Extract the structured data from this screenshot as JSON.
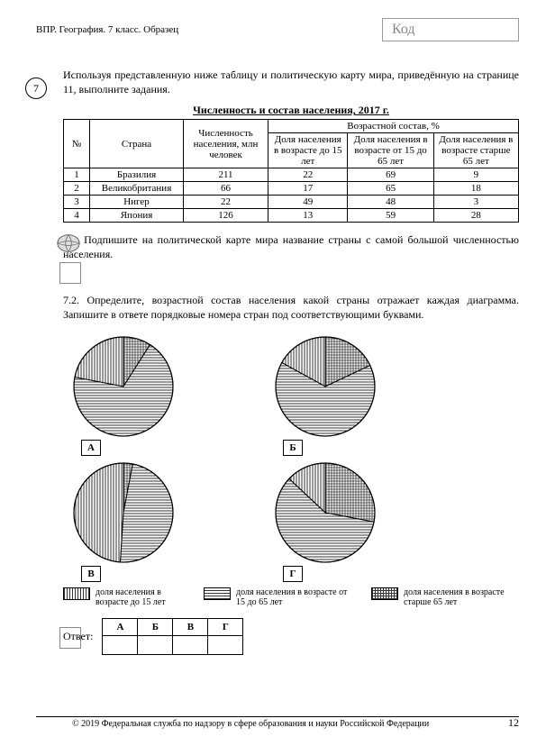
{
  "header": {
    "left": "ВПР. География. 7 класс. Образец",
    "code_label": "Код"
  },
  "task": {
    "number": "7",
    "intro": "Используя представленную ниже таблицу и политическую карту мира, приведённую на странице 11, выполните задания.",
    "table_title": "Численность и состав населения, 2017 г.",
    "columns": {
      "num": "№",
      "country": "Страна",
      "pop": "Численность населения, млн человек",
      "age_header": "Возрастной состав, %",
      "u15": "Доля населения в возрасте до 15 лет",
      "mid": "Доля населения в возрасте от 15 до 65 лет",
      "o65": "Доля населения в возрасте старше 65 лет"
    },
    "rows": [
      {
        "n": "1",
        "country": "Бразилия",
        "pop": "211",
        "u15": "22",
        "mid": "69",
        "o65": "9"
      },
      {
        "n": "2",
        "country": "Великобритания",
        "pop": "66",
        "u15": "17",
        "mid": "65",
        "o65": "18"
      },
      {
        "n": "3",
        "country": "Нигер",
        "pop": "22",
        "u15": "49",
        "mid": "48",
        "o65": "3"
      },
      {
        "n": "4",
        "country": "Япония",
        "pop": "126",
        "u15": "13",
        "mid": "59",
        "o65": "28"
      }
    ],
    "sub71": "7.1. Подпишите на политической карте мира название страны с самой большой численностью населения.",
    "sub72": "7.2. Определите, возрастной состав населения какой страны отражает каждая диаграмма. Запишите в ответе порядковые номера стран под соответствующими буквами."
  },
  "charts": {
    "radius": 55,
    "stroke": "#000000",
    "patterns": {
      "u15": {
        "id": "pVert",
        "desc": "vertical-lines"
      },
      "mid": {
        "id": "pHoriz",
        "desc": "horizontal-lines"
      },
      "o65": {
        "id": "pCross",
        "desc": "crosshatch"
      }
    },
    "items": [
      {
        "label": "А",
        "slices": {
          "u15": 22,
          "mid": 69,
          "o65": 9
        }
      },
      {
        "label": "Б",
        "slices": {
          "u15": 17,
          "mid": 65,
          "o65": 18
        }
      },
      {
        "label": "В",
        "slices": {
          "u15": 49,
          "mid": 48,
          "o65": 3
        }
      },
      {
        "label": "Г",
        "slices": {
          "u15": 13,
          "mid": 59,
          "o65": 28
        }
      }
    ]
  },
  "legend": {
    "u15": "доля населения в возрасте до 15 лет",
    "mid": "доля населения в возрасте от 15 до 65 лет",
    "o65": "доля населения в возрасте старше 65 лет"
  },
  "answer": {
    "label": "Ответ:",
    "cols": [
      "А",
      "Б",
      "В",
      "Г"
    ]
  },
  "footer": {
    "text": "© 2019 Федеральная служба по надзору в сфере образования и науки Российской Федерации",
    "page": "12"
  }
}
